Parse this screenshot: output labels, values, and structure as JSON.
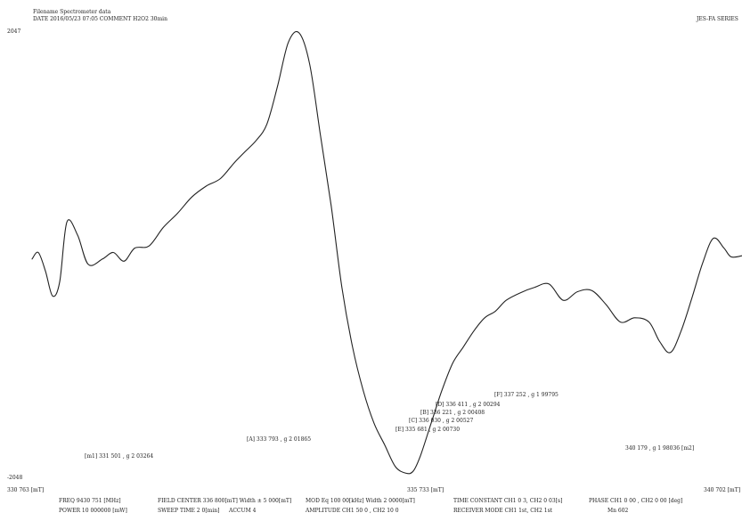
{
  "header": {
    "filename": "Filename  Spectrometer data",
    "date_line": "DATE  2016/05/23 07:05    COMMENT   H2O2 30min",
    "series": "JES-FA SERIES"
  },
  "axis": {
    "y_max": "2047",
    "y_min": "-2048",
    "x_min": "330 763 [mT]",
    "x_mid": "335 733 [mT]",
    "x_max": "340 702 [mT]"
  },
  "annotations": [
    "[F] 337 252 , g 1 99795",
    "[D] 336 411 , g 2 00294",
    "[B] 336 221 , g 2 00408",
    "[C] 336 030 , g 2 00527",
    "[E] 335 681 , g 2 00730",
    "[A] 333 793 , g 2 01865",
    "[m1] 331 501 , g 2 03264",
    "340 179 , g  1 98036  [m2]"
  ],
  "footer": {
    "row1": [
      "FREQ  9430 751 [MHz]",
      "FIELD CENTER  336 800[mT]  Width  ±   5 000[mT]",
      "MOD Eq  100 00[kHz]  Width   2 0000[mT]",
      "TIME CONSTANT CH1  0 3, CH2  0 03[s]",
      "PHASE CH1  0 00 , CH2  0 00   [deg]"
    ],
    "row2": [
      "POWER  10 000000 [mW]",
      "SWEEP TIME    2 0[min]",
      "ACCUM  4",
      "AMPLITUDE CH1  50 0  , CH2  10 0",
      "RECEIVER MODE CH1  1st, CH2  1st",
      "Mn  602"
    ]
  },
  "chart_data": {
    "type": "line",
    "title": "",
    "xlabel": "",
    "ylabel": "",
    "x_unit": "mT",
    "xlim": [
      330.763,
      340.702
    ],
    "ylim": [
      -2048,
      2047
    ],
    "grid": false,
    "series": [
      {
        "values_note": "",
        "x": [
          330.763,
          330.85,
          330.95,
          331.05,
          331.15,
          331.25,
          331.4,
          331.55,
          331.75,
          331.9,
          332.05,
          332.2,
          332.4,
          332.6,
          332.8,
          333.0,
          333.2,
          333.4,
          333.6,
          333.75,
          333.9,
          334.05,
          334.2,
          334.35,
          334.5,
          334.65,
          334.8,
          334.95,
          335.1,
          335.25,
          335.4,
          335.55,
          335.7,
          335.85,
          336.0,
          336.1,
          336.2,
          336.35,
          336.5,
          336.65,
          336.8,
          336.95,
          337.1,
          337.25,
          337.4,
          337.6,
          337.8,
          338.0,
          338.2,
          338.4,
          338.6,
          338.8,
          339.0,
          339.2,
          339.4,
          339.55,
          339.7,
          339.85,
          340.0,
          340.15,
          340.3,
          340.45,
          340.55,
          340.702
        ],
        "y": [
          -40,
          20,
          -150,
          -380,
          -250,
          300,
          180,
          -90,
          -40,
          20,
          -60,
          60,
          80,
          250,
          380,
          530,
          630,
          700,
          850,
          950,
          1050,
          1200,
          1550,
          1950,
          2040,
          1750,
          1100,
          450,
          -300,
          -850,
          -1250,
          -1550,
          -1750,
          -1950,
          -2010,
          -1990,
          -1850,
          -1550,
          -1250,
          -1000,
          -850,
          -700,
          -580,
          -520,
          -420,
          -350,
          -300,
          -270,
          -420,
          -340,
          -330,
          -460,
          -620,
          -580,
          -620,
          -800,
          -900,
          -700,
          -400,
          -80,
          150,
          60,
          -20,
          -10
        ]
      }
    ]
  }
}
